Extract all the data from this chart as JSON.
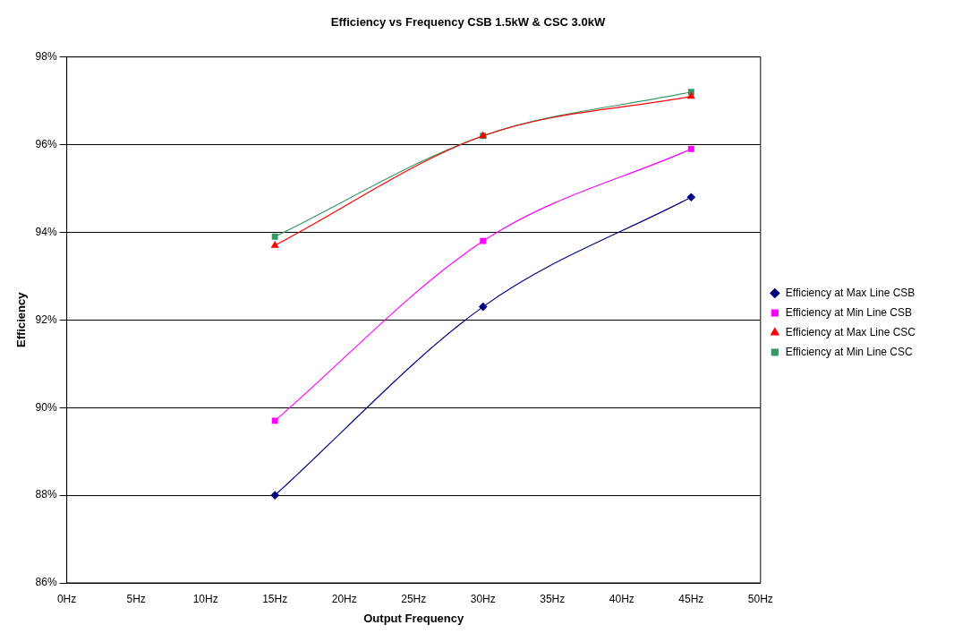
{
  "chart_data": {
    "type": "line",
    "title": "Efficiency vs Frequency CSB 1.5kW & CSC 3.0kW",
    "xlabel": "Output Frequency",
    "ylabel": "Efficiency",
    "x": [
      15,
      30,
      45
    ],
    "series": [
      {
        "name": "Efficiency at Max Line CSB",
        "color": "#000080",
        "values": [
          88.0,
          92.3,
          94.8
        ],
        "marker": "diamond"
      },
      {
        "name": "Efficiency at Min Line CSB",
        "color": "#ff00ff",
        "values": [
          89.7,
          93.8,
          95.9
        ],
        "marker": "square"
      },
      {
        "name": "Efficiency at Max Line CSC",
        "color": "#ff0000",
        "values": [
          93.7,
          96.2,
          97.1
        ],
        "marker": "triangle"
      },
      {
        "name": "Efficiency at Min Line CSC",
        "color": "#339966",
        "values": [
          93.9,
          96.2,
          97.2
        ],
        "marker": "square"
      }
    ],
    "xlim": [
      0,
      50
    ],
    "xticks": [
      {
        "value": 0,
        "label": "0Hz"
      },
      {
        "value": 5,
        "label": "5Hz"
      },
      {
        "value": 10,
        "label": "10Hz"
      },
      {
        "value": 15,
        "label": "15Hz"
      },
      {
        "value": 20,
        "label": "20Hz"
      },
      {
        "value": 25,
        "label": "25Hz"
      },
      {
        "value": 30,
        "label": "30Hz"
      },
      {
        "value": 35,
        "label": "35Hz"
      },
      {
        "value": 40,
        "label": "40Hz"
      },
      {
        "value": 45,
        "label": "45Hz"
      },
      {
        "value": 50,
        "label": "50Hz"
      }
    ],
    "ylim": [
      86,
      98
    ],
    "yticks": [
      {
        "value": 86,
        "label": "86%"
      },
      {
        "value": 88,
        "label": "88%"
      },
      {
        "value": 90,
        "label": "90%"
      },
      {
        "value": 92,
        "label": "92%"
      },
      {
        "value": 94,
        "label": "94%"
      },
      {
        "value": 96,
        "label": "96%"
      },
      {
        "value": 98,
        "label": "98%"
      }
    ],
    "grid": "y",
    "legend": "right",
    "line_style": "solid"
  }
}
